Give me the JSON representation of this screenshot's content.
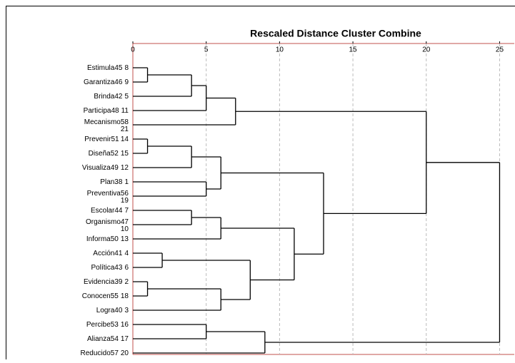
{
  "chart_data": {
    "type": "dendrogram",
    "title": "Rescaled Distance Cluster Combine",
    "xlim": [
      0,
      26
    ],
    "xticks": [
      0,
      5,
      10,
      15,
      20,
      25
    ],
    "grid": true,
    "tree": {
      "height": 25,
      "children": [
        {
          "height": 20,
          "children": [
            {
              "height": 7,
              "children": [
                {
                  "height": 5,
                  "children": [
                    {
                      "height": 4,
                      "children": [
                        {
                          "height": 1,
                          "children": [
                            {
                              "name": "Estimula45",
                              "id": 8
                            },
                            {
                              "name": "Garantiza46",
                              "id": 9
                            }
                          ]
                        },
                        {
                          "name": "Brinda42",
                          "id": 5
                        }
                      ]
                    },
                    {
                      "name": "Participa48",
                      "id": 11
                    }
                  ]
                },
                {
                  "name": "Mecanismo58",
                  "id": 21,
                  "wrap": true
                }
              ]
            },
            {
              "height": 13,
              "children": [
                {
                  "height": 6,
                  "children": [
                    {
                      "height": 4,
                      "children": [
                        {
                          "height": 1,
                          "children": [
                            {
                              "name": "Prevenir51",
                              "id": 14
                            },
                            {
                              "name": "Diseña52",
                              "id": 15
                            }
                          ]
                        },
                        {
                          "name": "Visualiza49",
                          "id": 12
                        }
                      ]
                    },
                    {
                      "height": 5,
                      "children": [
                        {
                          "name": "Plan38",
                          "id": 1
                        },
                        {
                          "name": "Preventiva56",
                          "id": 19,
                          "wrap": true
                        }
                      ]
                    }
                  ]
                },
                {
                  "height": 11,
                  "children": [
                    {
                      "height": 6,
                      "children": [
                        {
                          "height": 4,
                          "children": [
                            {
                              "name": "Escolar44",
                              "id": 7
                            },
                            {
                              "name": "Organismo47",
                              "id": 10,
                              "wrap": true
                            }
                          ]
                        },
                        {
                          "name": "Informa50",
                          "id": 13
                        }
                      ]
                    },
                    {
                      "height": 8,
                      "children": [
                        {
                          "height": 2,
                          "children": [
                            {
                              "name": "Acción41",
                              "id": 4
                            },
                            {
                              "name": "Política43",
                              "id": 6
                            }
                          ]
                        },
                        {
                          "height": 6,
                          "children": [
                            {
                              "height": 1,
                              "children": [
                                {
                                  "name": "Evidencia39",
                                  "id": 2
                                },
                                {
                                  "name": "Conocen55",
                                  "id": 18
                                }
                              ]
                            },
                            {
                              "name": "Logra40",
                              "id": 3
                            }
                          ]
                        }
                      ]
                    }
                  ]
                }
              ]
            }
          ]
        },
        {
          "height": 9,
          "children": [
            {
              "height": 5,
              "children": [
                {
                  "name": "Percibe53",
                  "id": 16
                },
                {
                  "name": "Alianza54",
                  "id": 17
                }
              ]
            },
            {
              "name": "Reducido57",
              "id": 20
            }
          ]
        }
      ]
    }
  }
}
